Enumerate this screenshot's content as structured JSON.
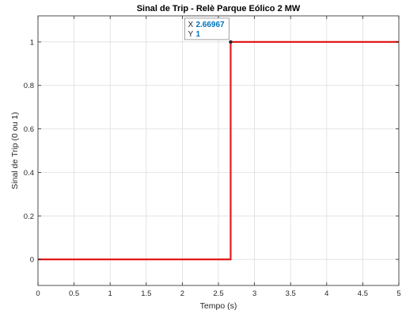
{
  "chart_data": {
    "type": "line",
    "title": "Sinal de Trip - Relè Parque Eólico 2 MW",
    "xlabel": "Tempo (s)",
    "ylabel": "Sinal de Trip (0 ou 1)",
    "xlim": [
      0,
      5
    ],
    "ylim": [
      -0.12,
      1.12
    ],
    "xticks": [
      0,
      0.5,
      1,
      1.5,
      2,
      2.5,
      3,
      3.5,
      4,
      4.5,
      5
    ],
    "xtick_labels": [
      "0",
      "0.5",
      "1",
      "1.5",
      "2",
      "2.5",
      "3",
      "3.5",
      "4",
      "4.5",
      "5"
    ],
    "yticks": [
      0,
      0.2,
      0.4,
      0.6,
      0.8,
      1
    ],
    "ytick_labels": [
      "0",
      "0.2",
      "0.4",
      "0.6",
      "0.8",
      "1"
    ],
    "grid": true,
    "series": [
      {
        "color": "#e31a1c",
        "x": [
          0,
          2.66967,
          2.66967,
          5
        ],
        "y": [
          0,
          0,
          1,
          1
        ]
      }
    ],
    "datatip": {
      "x_label": "X",
      "x_value": "2.66967",
      "y_label": "Y",
      "y_value": "1",
      "x": 2.66967,
      "y": 1
    },
    "colors": {
      "axis": "#262626",
      "grid": "#d9d9d9",
      "datatip_value": "#0072bd"
    }
  }
}
